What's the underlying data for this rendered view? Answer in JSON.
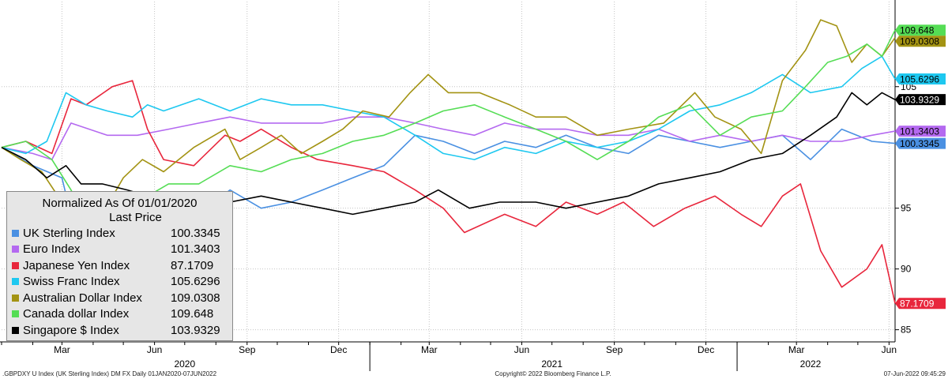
{
  "chart_data": {
    "type": "line",
    "legend_title": "Normalized As Of 01/01/2020",
    "legend_subtitle": "Last Price",
    "legend_position": "bottom-left",
    "ylim": [
      84,
      112
    ],
    "y_ticks": [
      85,
      90,
      95,
      105
    ],
    "y_axis_side": "right",
    "grid": true,
    "x_month_ticks": [
      {
        "label": "Mar",
        "date": "2020-03-01"
      },
      {
        "label": "Jun",
        "date": "2020-06-01"
      },
      {
        "label": "Sep",
        "date": "2020-09-01"
      },
      {
        "label": "Dec",
        "date": "2020-12-01"
      },
      {
        "label": "Mar",
        "date": "2021-03-01"
      },
      {
        "label": "Jun",
        "date": "2021-06-01"
      },
      {
        "label": "Sep",
        "date": "2021-09-01"
      },
      {
        "label": "Dec",
        "date": "2021-12-01"
      },
      {
        "label": "Mar",
        "date": "2022-03-01"
      },
      {
        "label": "Jun",
        "date": "2022-06-01"
      }
    ],
    "x_year_labels": [
      {
        "label": "2020",
        "date": "2020-07-01"
      },
      {
        "label": "2021",
        "date": "2021-07-01"
      },
      {
        "label": "2022",
        "date": "2022-03-15"
      }
    ],
    "x_range": [
      "2020-01-01",
      "2022-06-07"
    ],
    "series": [
      {
        "name": "UK Sterling Index",
        "last": "100.3345",
        "color": "#4a90e2",
        "x": [
          "2020-01-01",
          "2020-02-01",
          "2020-03-01",
          "2020-03-20",
          "2020-04-15",
          "2020-05-15",
          "2020-06-15",
          "2020-07-15",
          "2020-08-15",
          "2020-09-15",
          "2020-10-15",
          "2020-11-15",
          "2020-12-15",
          "2021-01-15",
          "2021-02-15",
          "2021-03-15",
          "2021-04-15",
          "2021-05-15",
          "2021-06-15",
          "2021-07-15",
          "2021-08-15",
          "2021-09-15",
          "2021-10-15",
          "2021-11-15",
          "2021-12-15",
          "2022-01-15",
          "2022-02-15",
          "2022-03-15",
          "2022-04-15",
          "2022-05-15",
          "2022-06-07"
        ],
        "y": [
          100.0,
          98.5,
          97.5,
          91.0,
          94.0,
          93.5,
          96.0,
          94.5,
          96.5,
          95.0,
          95.5,
          96.5,
          97.5,
          98.5,
          101.0,
          100.5,
          99.5,
          100.5,
          100.0,
          101.0,
          100.0,
          99.5,
          101.0,
          100.5,
          100.0,
          100.5,
          101.0,
          99.0,
          101.5,
          100.5,
          100.3345
        ]
      },
      {
        "name": "Euro Index",
        "last": "101.3403",
        "color": "#b469f0",
        "x": [
          "2020-01-01",
          "2020-02-01",
          "2020-02-20",
          "2020-03-10",
          "2020-04-15",
          "2020-05-15",
          "2020-06-15",
          "2020-07-15",
          "2020-08-15",
          "2020-09-15",
          "2020-10-15",
          "2020-11-15",
          "2020-12-15",
          "2021-01-15",
          "2021-02-15",
          "2021-03-15",
          "2021-04-15",
          "2021-05-15",
          "2021-06-15",
          "2021-07-15",
          "2021-08-15",
          "2021-09-15",
          "2021-10-15",
          "2021-11-15",
          "2021-12-15",
          "2022-01-15",
          "2022-02-15",
          "2022-03-15",
          "2022-04-15",
          "2022-05-15",
          "2022-06-07"
        ],
        "y": [
          100.0,
          99.5,
          99.0,
          102.0,
          101.0,
          101.0,
          101.5,
          102.0,
          102.5,
          102.0,
          102.0,
          102.0,
          102.5,
          102.5,
          102.0,
          101.5,
          101.0,
          102.0,
          101.5,
          101.5,
          101.0,
          101.0,
          101.5,
          100.5,
          101.0,
          100.5,
          101.0,
          100.5,
          100.5,
          101.0,
          101.3403
        ]
      },
      {
        "name": "Japanese Yen Index",
        "last": "87.1709",
        "color": "#e8263c",
        "x": [
          "2020-01-01",
          "2020-01-25",
          "2020-02-20",
          "2020-03-10",
          "2020-03-25",
          "2020-04-20",
          "2020-05-10",
          "2020-05-25",
          "2020-06-10",
          "2020-07-10",
          "2020-08-10",
          "2020-08-25",
          "2020-09-15",
          "2020-10-15",
          "2020-11-10",
          "2020-12-15",
          "2021-01-15",
          "2021-02-15",
          "2021-03-15",
          "2021-04-05",
          "2021-05-15",
          "2021-06-15",
          "2021-07-15",
          "2021-08-15",
          "2021-09-10",
          "2021-10-10",
          "2021-11-10",
          "2021-12-10",
          "2022-01-05",
          "2022-01-25",
          "2022-02-15",
          "2022-03-05",
          "2022-03-25",
          "2022-04-15",
          "2022-05-10",
          "2022-05-25",
          "2022-06-07"
        ],
        "y": [
          100.0,
          100.5,
          99.5,
          104.0,
          103.5,
          105.0,
          105.5,
          101.5,
          99.0,
          98.5,
          101.0,
          100.5,
          101.5,
          100.0,
          99.0,
          98.5,
          98.0,
          96.5,
          95.0,
          93.0,
          94.5,
          93.5,
          95.5,
          94.5,
          95.5,
          93.5,
          95.0,
          96.0,
          94.5,
          93.5,
          96.0,
          97.0,
          91.5,
          88.5,
          90.0,
          92.0,
          87.1709
        ]
      },
      {
        "name": "Swiss Franc Index",
        "last": "105.6296",
        "color": "#1ec8f0",
        "x": [
          "2020-01-01",
          "2020-01-25",
          "2020-02-15",
          "2020-03-05",
          "2020-03-25",
          "2020-04-15",
          "2020-05-10",
          "2020-05-25",
          "2020-06-10",
          "2020-07-15",
          "2020-08-15",
          "2020-09-15",
          "2020-10-15",
          "2020-11-15",
          "2020-12-15",
          "2021-01-15",
          "2021-02-15",
          "2021-03-15",
          "2021-04-15",
          "2021-05-15",
          "2021-06-15",
          "2021-07-15",
          "2021-08-15",
          "2021-09-15",
          "2021-10-15",
          "2021-11-15",
          "2021-12-15",
          "2022-01-15",
          "2022-02-15",
          "2022-03-15",
          "2022-04-15",
          "2022-05-05",
          "2022-05-25",
          "2022-06-07"
        ],
        "y": [
          100.0,
          99.5,
          100.5,
          104.5,
          103.5,
          103.0,
          102.5,
          103.5,
          103.0,
          104.0,
          103.0,
          104.0,
          103.5,
          103.5,
          103.0,
          102.5,
          101.0,
          99.5,
          99.0,
          100.0,
          99.5,
          100.5,
          100.0,
          100.5,
          101.5,
          103.0,
          103.5,
          104.5,
          106.0,
          104.5,
          105.0,
          106.5,
          107.5,
          105.6296
        ]
      },
      {
        "name": "Australian Dollar Index",
        "last": "109.0308",
        "color": "#a39313",
        "x": [
          "2020-01-01",
          "2020-01-20",
          "2020-02-10",
          "2020-03-01",
          "2020-03-20",
          "2020-04-10",
          "2020-05-01",
          "2020-05-20",
          "2020-06-10",
          "2020-07-10",
          "2020-08-10",
          "2020-08-25",
          "2020-09-15",
          "2020-10-05",
          "2020-10-25",
          "2020-11-15",
          "2020-12-05",
          "2020-12-25",
          "2021-01-20",
          "2021-02-10",
          "2021-02-28",
          "2021-03-20",
          "2021-04-20",
          "2021-05-20",
          "2021-06-15",
          "2021-07-15",
          "2021-08-15",
          "2021-09-15",
          "2021-10-20",
          "2021-11-20",
          "2021-12-10",
          "2022-01-05",
          "2022-01-25",
          "2022-02-15",
          "2022-03-10",
          "2022-03-25",
          "2022-04-10",
          "2022-04-25",
          "2022-05-10",
          "2022-05-25",
          "2022-06-07"
        ],
        "y": [
          100.0,
          99.0,
          98.0,
          95.5,
          89.5,
          94.5,
          97.5,
          99.0,
          98.0,
          100.0,
          101.5,
          99.0,
          100.0,
          101.0,
          99.5,
          100.5,
          101.5,
          103.0,
          102.5,
          104.5,
          106.0,
          104.5,
          104.5,
          103.5,
          102.5,
          102.5,
          101.0,
          101.5,
          102.0,
          104.5,
          102.5,
          101.5,
          99.5,
          105.5,
          108.0,
          110.5,
          110.0,
          107.0,
          108.5,
          107.5,
          109.0308
        ]
      },
      {
        "name": "Canada dollar Index",
        "last": "109.648",
        "color": "#55dd55",
        "x": [
          "2020-01-01",
          "2020-01-25",
          "2020-02-20",
          "2020-03-10",
          "2020-03-25",
          "2020-04-15",
          "2020-05-15",
          "2020-06-15",
          "2020-07-15",
          "2020-08-15",
          "2020-09-15",
          "2020-10-15",
          "2020-11-15",
          "2020-12-15",
          "2021-01-15",
          "2021-02-15",
          "2021-03-15",
          "2021-04-15",
          "2021-05-15",
          "2021-06-15",
          "2021-07-15",
          "2021-08-15",
          "2021-09-15",
          "2021-10-15",
          "2021-11-15",
          "2021-12-15",
          "2022-01-15",
          "2022-02-15",
          "2022-03-10",
          "2022-04-01",
          "2022-04-20",
          "2022-05-10",
          "2022-05-25",
          "2022-06-07"
        ],
        "y": [
          100.0,
          100.5,
          99.0,
          96.5,
          94.0,
          95.0,
          95.5,
          97.0,
          97.0,
          98.5,
          98.0,
          99.0,
          99.5,
          100.5,
          101.0,
          102.0,
          103.0,
          103.5,
          102.5,
          101.5,
          100.5,
          99.0,
          100.5,
          102.5,
          103.5,
          101.0,
          102.5,
          103.0,
          105.0,
          107.0,
          107.5,
          108.5,
          107.5,
          109.648
        ]
      },
      {
        "name": "Singapore $ Index",
        "last": "103.9329",
        "color": "#000000",
        "x": [
          "2020-01-01",
          "2020-01-25",
          "2020-02-15",
          "2020-03-05",
          "2020-03-20",
          "2020-04-10",
          "2020-05-05",
          "2020-05-25",
          "2020-06-15",
          "2020-07-15",
          "2020-08-15",
          "2020-09-15",
          "2020-10-15",
          "2020-11-15",
          "2020-12-15",
          "2021-01-15",
          "2021-02-15",
          "2021-03-10",
          "2021-04-10",
          "2021-05-10",
          "2021-06-15",
          "2021-07-15",
          "2021-08-15",
          "2021-09-15",
          "2021-10-15",
          "2021-11-15",
          "2021-12-15",
          "2022-01-15",
          "2022-02-15",
          "2022-03-15",
          "2022-04-10",
          "2022-04-25",
          "2022-05-10",
          "2022-05-25",
          "2022-06-07"
        ],
        "y": [
          100.0,
          99.0,
          97.5,
          98.5,
          97.0,
          97.0,
          96.5,
          96.0,
          95.5,
          95.0,
          95.5,
          96.0,
          95.5,
          95.0,
          94.5,
          95.0,
          95.5,
          96.5,
          95.0,
          95.5,
          95.5,
          95.0,
          95.5,
          96.0,
          97.0,
          97.5,
          98.0,
          99.0,
          99.5,
          101.0,
          102.5,
          104.5,
          103.5,
          104.5,
          103.9329
        ]
      }
    ]
  },
  "footer": {
    "left": ".GBPDXY U Index (UK Sterling Index) DM FX  Daily 01JAN2020-07JUN2022",
    "center": "Copyright© 2022 Bloomberg Finance L.P.",
    "right": "07-Jun-2022 09:45:29"
  }
}
